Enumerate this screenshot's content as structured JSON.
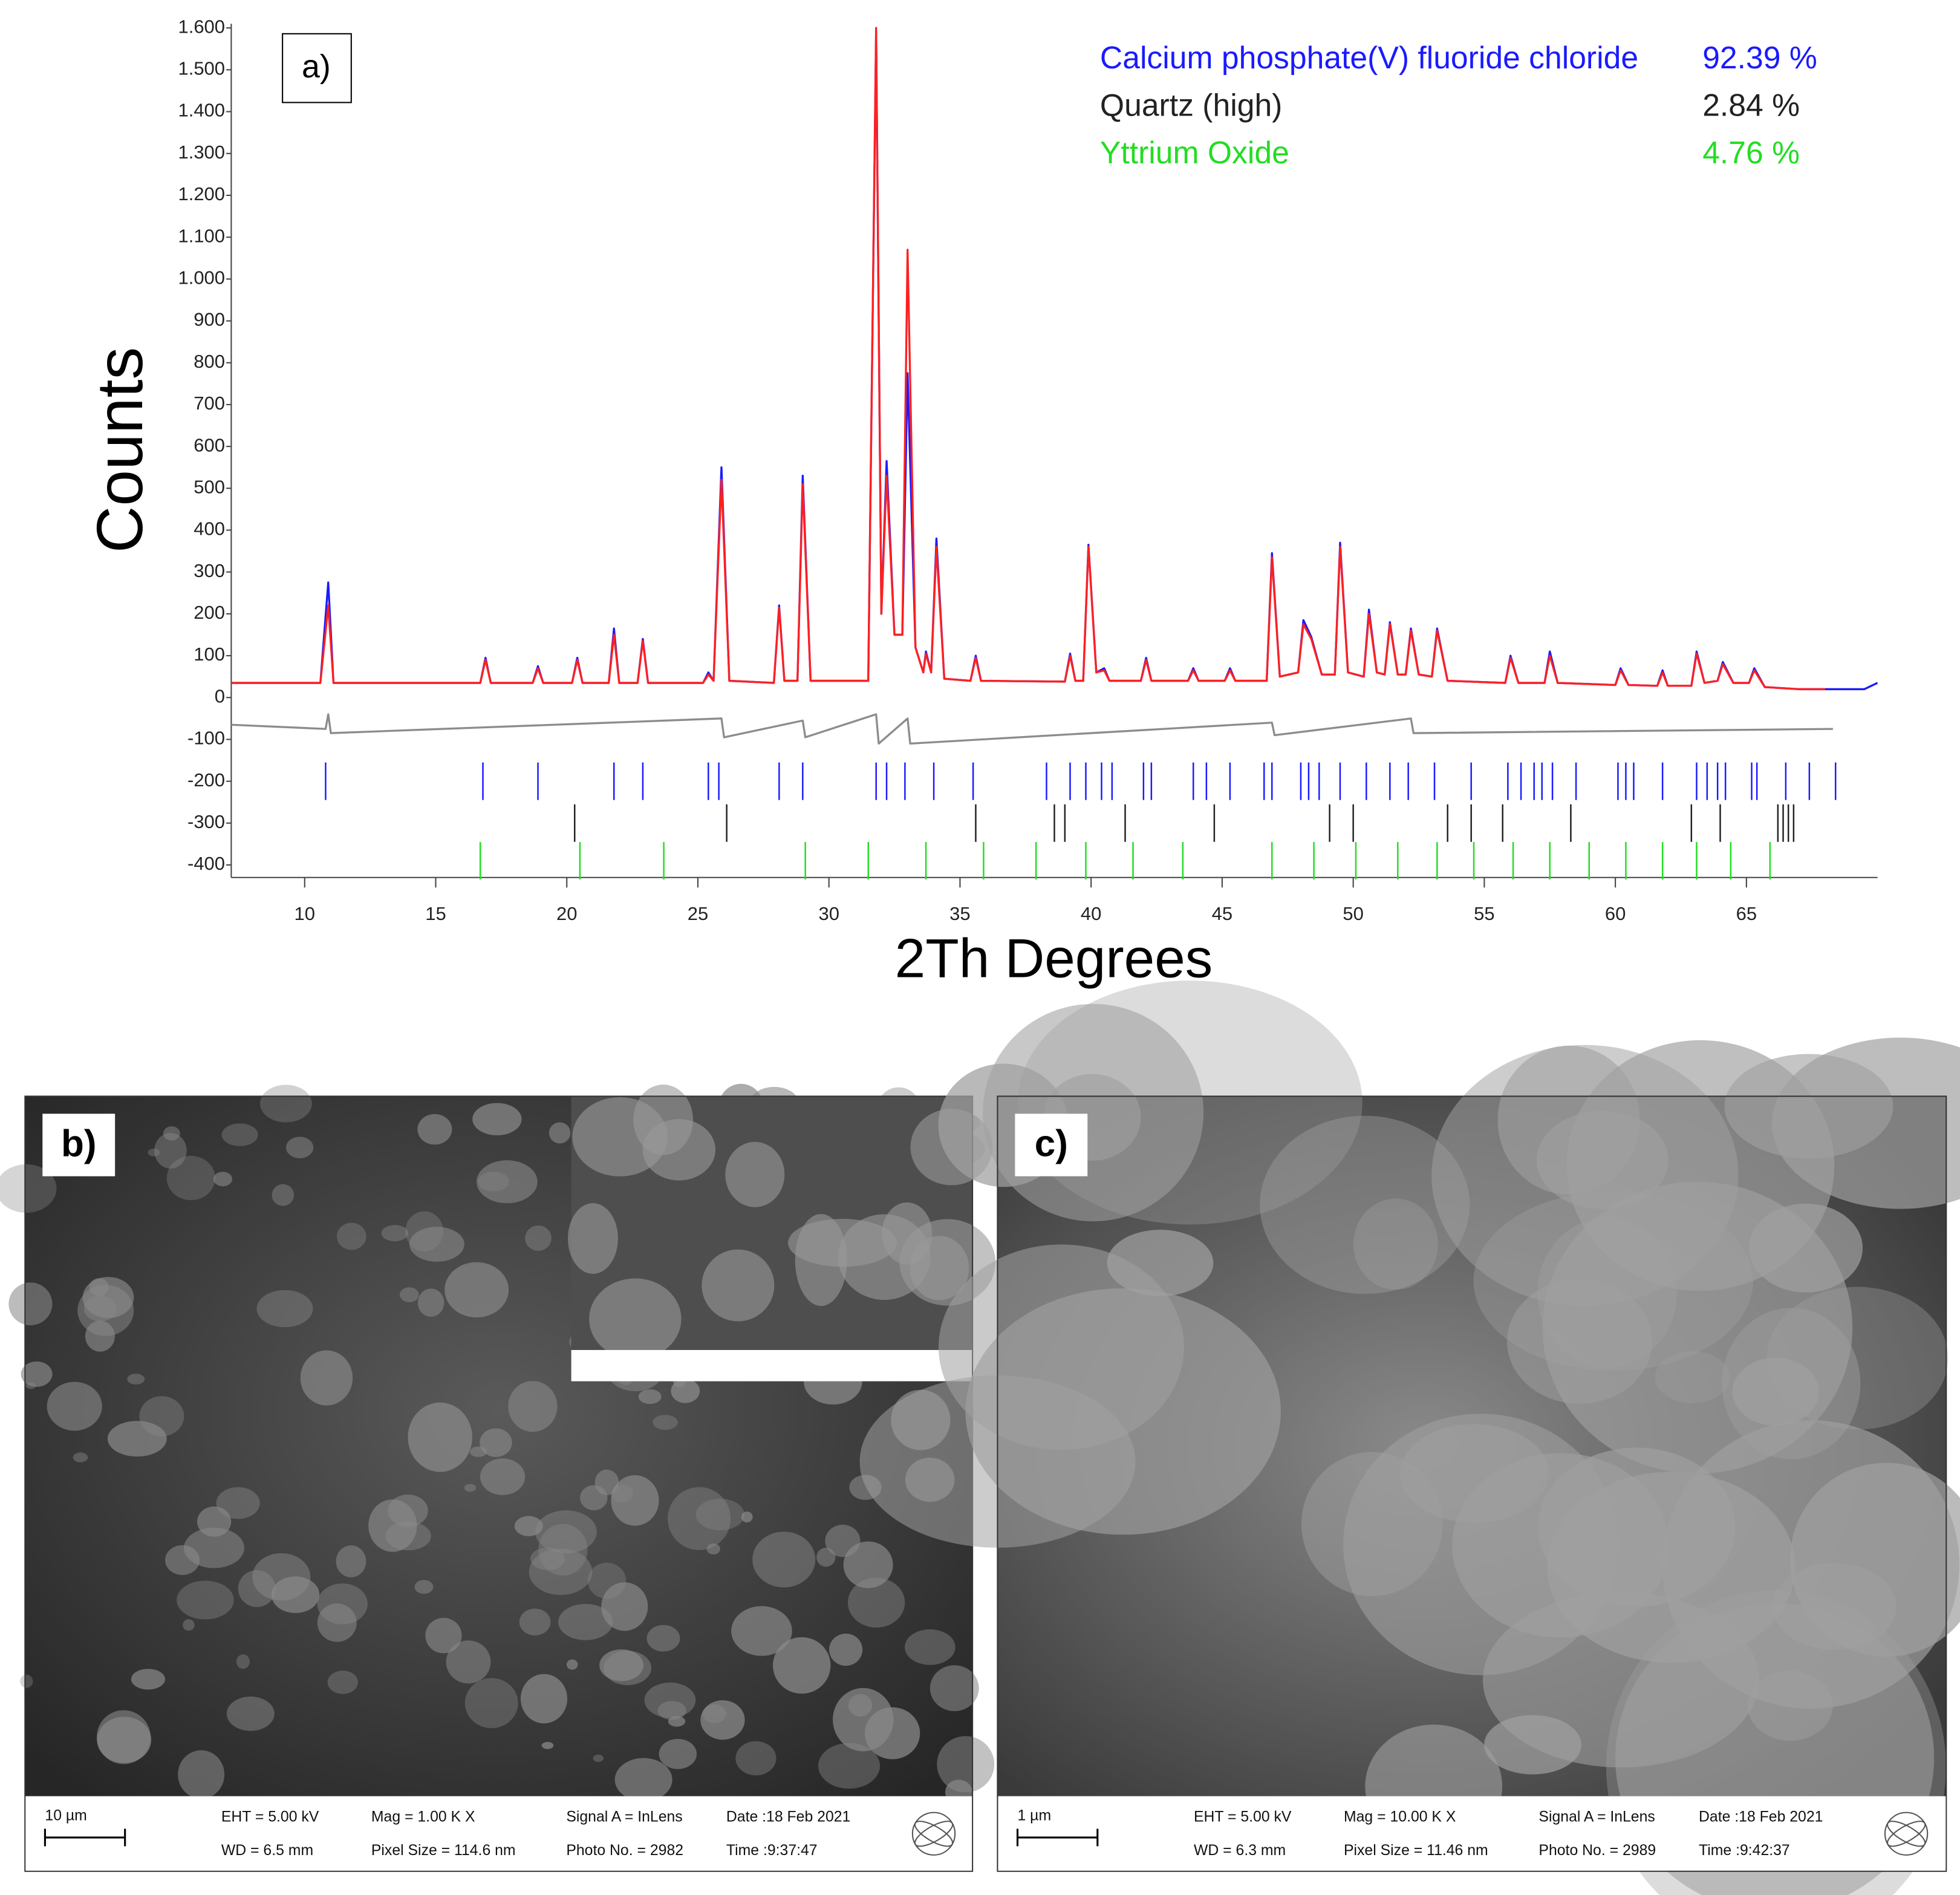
{
  "chart_data": {
    "type": "line",
    "panel_label": "a)",
    "ylabel": "Counts",
    "xlabel": "2Th Degrees",
    "xlim": [
      7.2,
      70
    ],
    "xticks": [
      10,
      15,
      20,
      25,
      30,
      35,
      40,
      45,
      50,
      55,
      60,
      65
    ],
    "ylim": [
      -430,
      1610
    ],
    "yticks": [
      -400,
      -300,
      -200,
      -100,
      0,
      100,
      200,
      300,
      400,
      500,
      600,
      700,
      800,
      900,
      {
        "value": 1000,
        "label": "1.000"
      },
      {
        "value": 1100,
        "label": "1.100"
      },
      {
        "value": 1200,
        "label": "1.200"
      },
      {
        "value": 1300,
        "label": "1.300"
      },
      {
        "value": 1400,
        "label": "1.400"
      },
      {
        "value": 1500,
        "label": "1.500"
      },
      {
        "value": 1600,
        "label": "1.600"
      }
    ],
    "legend": [
      {
        "name": "Calcium phosphate(V) fluoride chloride",
        "amount": "92.39 %",
        "color": "#1a1aff"
      },
      {
        "name": "Quartz (high)",
        "amount": "2.84 %",
        "color": "#222222"
      },
      {
        "name": "Yttrium Oxide",
        "amount": "4.76 %",
        "color": "#22dd22"
      }
    ],
    "series": [
      {
        "color": "#1a1aff",
        "x": [
          7.2,
          10.6,
          10.9,
          11.1,
          16.7,
          16.9,
          17.1,
          18.7,
          18.9,
          19.1,
          20.2,
          20.4,
          20.6,
          21.6,
          21.8,
          22.0,
          22.7,
          22.9,
          23.1,
          25.2,
          25.4,
          25.6,
          25.9,
          26.2,
          27.9,
          28.1,
          28.3,
          28.8,
          29.0,
          29.3,
          31.5,
          31.8,
          32.0,
          32.2,
          32.5,
          32.8,
          33.0,
          33.3,
          33.6,
          33.7,
          33.9,
          34.1,
          34.4,
          35.4,
          35.6,
          35.8,
          39.0,
          39.2,
          39.4,
          39.7,
          39.9,
          40.2,
          40.5,
          40.7,
          41.9,
          42.1,
          42.3,
          43.7,
          43.9,
          44.1,
          45.1,
          45.3,
          45.5,
          46.7,
          46.9,
          47.2,
          47.9,
          48.1,
          48.4,
          48.8,
          49.3,
          49.5,
          49.8,
          50.4,
          50.6,
          50.9,
          51.2,
          51.4,
          51.7,
          52.0,
          52.2,
          52.5,
          53.0,
          53.2,
          53.6,
          55.8,
          56.0,
          56.3,
          57.3,
          57.5,
          57.8,
          60.0,
          60.2,
          60.5,
          61.6,
          61.8,
          62.0,
          62.9,
          63.1,
          63.4,
          63.9,
          64.1,
          64.5,
          65.1,
          65.3,
          65.7,
          67.0,
          69.5,
          70.0
        ],
        "values": [
          35,
          35,
          275,
          35,
          35,
          95,
          35,
          35,
          75,
          35,
          35,
          95,
          35,
          35,
          165,
          35,
          35,
          140,
          35,
          35,
          60,
          40,
          550,
          40,
          35,
          220,
          40,
          40,
          530,
          40,
          40,
          1590,
          200,
          565,
          150,
          150,
          775,
          120,
          60,
          110,
          60,
          380,
          45,
          40,
          100,
          40,
          38,
          105,
          40,
          40,
          365,
          60,
          70,
          40,
          40,
          95,
          40,
          40,
          70,
          40,
          40,
          70,
          40,
          40,
          345,
          50,
          60,
          185,
          145,
          55,
          55,
          370,
          60,
          50,
          210,
          60,
          55,
          180,
          55,
          55,
          165,
          55,
          50,
          165,
          40,
          35,
          100,
          35,
          35,
          110,
          35,
          30,
          70,
          30,
          28,
          65,
          28,
          28,
          110,
          35,
          40,
          85,
          35,
          35,
          70,
          25,
          20,
          20,
          35
        ]
      },
      {
        "color": "#ff2020",
        "x": [
          7.2,
          10.6,
          10.9,
          11.1,
          16.7,
          16.9,
          17.1,
          18.7,
          18.9,
          19.1,
          20.2,
          20.4,
          20.6,
          21.6,
          21.8,
          22.0,
          22.7,
          22.9,
          23.1,
          25.2,
          25.4,
          25.6,
          25.9,
          26.2,
          27.9,
          28.1,
          28.3,
          28.8,
          29.0,
          29.3,
          31.5,
          31.8,
          32.0,
          32.2,
          32.5,
          32.8,
          33.0,
          33.3,
          33.6,
          33.7,
          33.9,
          34.1,
          34.4,
          35.4,
          35.6,
          35.8,
          39.0,
          39.2,
          39.4,
          39.7,
          39.9,
          40.2,
          40.5,
          40.7,
          41.9,
          42.1,
          42.3,
          43.7,
          43.9,
          44.1,
          45.1,
          45.3,
          45.5,
          46.7,
          46.9,
          47.2,
          47.9,
          48.1,
          48.4,
          48.8,
          49.3,
          49.5,
          49.8,
          50.4,
          50.6,
          50.9,
          51.2,
          51.4,
          51.7,
          52.0,
          52.2,
          52.5,
          53.0,
          53.2,
          53.6,
          55.8,
          56.0,
          56.3,
          57.3,
          57.5,
          57.8,
          60.0,
          60.2,
          60.5,
          61.6,
          61.8,
          62.0,
          62.9,
          63.1,
          63.4,
          63.9,
          64.1,
          64.5,
          65.1,
          65.3,
          65.7,
          67.0,
          68.0
        ],
        "values": [
          35,
          35,
          220,
          35,
          35,
          90,
          35,
          35,
          70,
          35,
          35,
          90,
          35,
          35,
          150,
          35,
          35,
          135,
          35,
          35,
          55,
          40,
          520,
          40,
          35,
          215,
          40,
          40,
          510,
          40,
          40,
          1600,
          200,
          530,
          150,
          150,
          1070,
          120,
          60,
          105,
          60,
          360,
          45,
          40,
          95,
          40,
          38,
          100,
          40,
          40,
          360,
          60,
          65,
          40,
          40,
          90,
          40,
          40,
          65,
          40,
          40,
          65,
          40,
          40,
          335,
          50,
          60,
          175,
          140,
          55,
          55,
          360,
          60,
          50,
          200,
          60,
          55,
          175,
          55,
          55,
          160,
          55,
          50,
          160,
          40,
          35,
          95,
          35,
          35,
          100,
          35,
          30,
          65,
          30,
          28,
          60,
          28,
          28,
          105,
          35,
          40,
          80,
          35,
          35,
          65,
          25,
          20,
          20
        ]
      },
      {
        "color": "#8c8c8c",
        "x": [
          7.2,
          10.8,
          10.9,
          11.0,
          25.9,
          26.0,
          29.0,
          29.1,
          31.8,
          31.9,
          33.0,
          33.1,
          46.9,
          47.0,
          52.2,
          52.3,
          68.3
        ],
        "values": [
          -65,
          -75,
          -40,
          -85,
          -50,
          -95,
          -55,
          -95,
          -40,
          -110,
          -50,
          -110,
          -60,
          -90,
          -50,
          -85,
          -75
        ]
      }
    ],
    "reflections": [
      {
        "color": "#1a1aff",
        "level": -200,
        "positions": [
          10.8,
          16.8,
          18.9,
          21.8,
          22.9,
          25.4,
          25.8,
          28.1,
          29.0,
          31.8,
          32.2,
          32.9,
          34.0,
          35.5,
          38.3,
          39.2,
          39.8,
          40.4,
          40.8,
          42.0,
          42.3,
          43.9,
          44.4,
          45.3,
          46.6,
          46.9,
          48.0,
          48.3,
          48.7,
          49.5,
          50.5,
          51.4,
          52.1,
          53.1,
          54.5,
          55.9,
          56.4,
          56.9,
          57.2,
          57.6,
          58.5,
          60.1,
          60.4,
          60.7,
          61.8,
          63.1,
          63.5,
          63.9,
          64.2,
          65.2,
          65.4,
          66.5,
          67.4,
          68.4
        ]
      },
      {
        "color": "#222222",
        "level": -300,
        "positions": [
          20.3,
          26.1,
          35.6,
          38.6,
          39.0,
          41.3,
          44.7,
          49.1,
          50.0,
          53.6,
          54.5,
          55.7,
          58.3,
          62.9,
          64.0,
          66.2,
          66.4,
          66.6,
          66.8
        ]
      },
      {
        "color": "#22dd22",
        "level": -390,
        "positions": [
          16.7,
          20.5,
          23.7,
          29.1,
          31.5,
          33.7,
          35.9,
          37.9,
          39.8,
          41.6,
          43.5,
          46.9,
          48.5,
          50.1,
          51.7,
          53.2,
          54.6,
          56.1,
          57.5,
          59.0,
          60.4,
          61.8,
          63.1,
          64.4,
          65.9
        ]
      }
    ]
  },
  "images": [
    {
      "label": "b)",
      "scale_bar": "10 µm",
      "info": [
        "EHT =  5.00 kV",
        "WD =  6.5 mm",
        "Mag =    1.00 K X",
        "Pixel Size = 114.6 nm",
        "Signal A = InLens",
        "Photo No. = 2982",
        "Date :18 Feb 2021",
        "Time :9:37:47"
      ]
    },
    {
      "label": "c)",
      "scale_bar": "1 µm",
      "info": [
        "EHT =  5.00 kV",
        "WD =  6.3 mm",
        "Mag =   10.00 K X",
        "Pixel Size = 11.46 nm",
        "Signal A = InLens",
        "Photo No. = 2989",
        "Date :18 Feb 2021",
        "Time :9:42:37"
      ]
    }
  ]
}
